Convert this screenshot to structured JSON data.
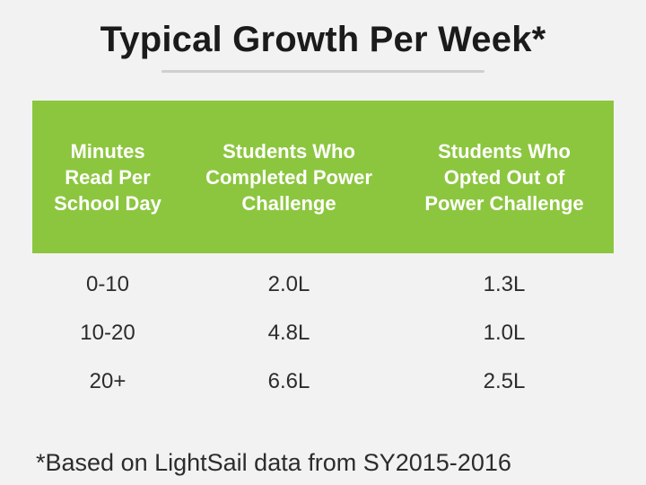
{
  "title": "Typical Growth Per Week*",
  "table": {
    "headers": [
      "Minutes\nRead Per\nSchool Day",
      "Students Who\nCompleted Power\nChallenge",
      "Students Who\nOpted Out of\nPower Challenge"
    ],
    "rows": [
      [
        "0-10",
        "2.0L",
        "1.3L"
      ],
      [
        "10-20",
        "4.8L",
        "1.0L"
      ],
      [
        "20+",
        "6.6L",
        "2.5L"
      ]
    ]
  },
  "footnote": "*Based on LightSail data from SY2015-2016",
  "colors": {
    "header_bg": "#8cc63f",
    "header_text": "#ffffff",
    "background": "#f2f2f2",
    "divider": "#cfcfcf"
  }
}
